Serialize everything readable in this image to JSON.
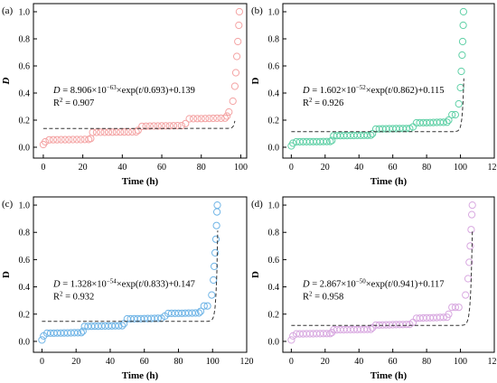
{
  "figure": {
    "panels": [
      {
        "tag": "(a)",
        "color": "#f4a3a3",
        "ylabel": "D",
        "ylabel_italic": true,
        "xlabel": "Time (h)",
        "eq_lead": "D",
        "eq_lead_italic": true,
        "eq_coef": " = 8.906×10",
        "eq_exp": "−63",
        "eq_mid": "×exp(",
        "eq_var": "t",
        "eq_tail": "/0.693)+0.139",
        "r2_text": "R",
        "r2_sup": "2",
        "r2_value": " = 0.907"
      },
      {
        "tag": "(b)",
        "color": "#5fd0a6",
        "ylabel": "D",
        "ylabel_italic": false,
        "xlabel": "Time (h)",
        "eq_lead": "D",
        "eq_lead_italic": true,
        "eq_coef": " = 1.602×10",
        "eq_exp": "−52",
        "eq_mid": "×exp(",
        "eq_var": "t",
        "eq_tail": "/0.862)+0.115",
        "r2_text": "R",
        "r2_sup": "2",
        "r2_value": " = 0.926"
      },
      {
        "tag": "(c)",
        "color": "#6fb4e6",
        "ylabel": "D",
        "ylabel_italic": false,
        "xlabel": "Time (h)",
        "eq_lead": "D",
        "eq_lead_italic": true,
        "eq_coef": " = 1.328×10",
        "eq_exp": "−54",
        "eq_mid": "×exp(",
        "eq_var": "t",
        "eq_tail": "/0.833)+0.147",
        "r2_text": "R",
        "r2_sup": "2",
        "r2_value": " = 0.932"
      },
      {
        "tag": "(d)",
        "color": "#d8a8e0",
        "ylabel": "D",
        "ylabel_italic": false,
        "xlabel": "Time (h)",
        "eq_lead": "D",
        "eq_lead_italic": true,
        "eq_coef": " = 2.867×10",
        "eq_exp": "−50",
        "eq_mid": "×exp(",
        "eq_var": "t",
        "eq_tail": "/0.941)+0.117",
        "r2_text": "R",
        "r2_sup": "2",
        "r2_value": " = 0.958"
      }
    ]
  },
  "chart_data": [
    {
      "type": "scatter",
      "x_ticks": [
        0,
        20,
        40,
        60,
        80,
        100
      ],
      "y_ticks": [
        0.0,
        0.2,
        0.4,
        0.6,
        0.8,
        1.0
      ],
      "xlim": [
        -5,
        103
      ],
      "ylim": [
        -0.08,
        1.06
      ],
      "fit": {
        "a": 8.906e-63,
        "tau": 0.693,
        "c": 0.139
      },
      "fit_x_range": [
        0,
        97
      ],
      "steps": [
        [
          0,
          0.02
        ],
        [
          1,
          0.04
        ],
        [
          3,
          0.055
        ],
        [
          24,
          0.065
        ],
        [
          25,
          0.11
        ],
        [
          48,
          0.125
        ],
        [
          50,
          0.155
        ],
        [
          72,
          0.175
        ],
        [
          74,
          0.21
        ],
        [
          93,
          0.23
        ],
        [
          94,
          0.26
        ]
      ],
      "rise": [
        [
          96,
          0.34
        ],
        [
          97,
          0.45
        ],
        [
          97.5,
          0.55
        ],
        [
          98,
          0.67
        ],
        [
          98.5,
          0.78
        ],
        [
          99,
          0.9
        ],
        [
          99.3,
          1.0
        ]
      ],
      "end_x": 95
    },
    {
      "type": "scatter",
      "x_ticks": [
        0,
        20,
        40,
        60,
        80,
        100,
        120
      ],
      "y_ticks": [
        0.0,
        0.2,
        0.4,
        0.6,
        0.8,
        1.0
      ],
      "xlim": [
        -5,
        120
      ],
      "ylim": [
        -0.08,
        1.06
      ],
      "fit": {
        "a": 1.602e-52,
        "tau": 0.862,
        "c": 0.115
      },
      "fit_x_range": [
        0,
        102
      ],
      "steps": [
        [
          0,
          0.01
        ],
        [
          1,
          0.03
        ],
        [
          3,
          0.04
        ],
        [
          24,
          0.05
        ],
        [
          25,
          0.085
        ],
        [
          48,
          0.1
        ],
        [
          50,
          0.135
        ],
        [
          72,
          0.15
        ],
        [
          74,
          0.18
        ],
        [
          93,
          0.2
        ],
        [
          95,
          0.24
        ]
      ],
      "rise": [
        [
          99,
          0.32
        ],
        [
          100,
          0.44
        ],
        [
          100.5,
          0.56
        ],
        [
          101,
          0.68
        ],
        [
          101.3,
          0.78
        ],
        [
          101.6,
          0.9
        ],
        [
          101.8,
          1.0
        ]
      ],
      "end_x": 98
    },
    {
      "type": "scatter",
      "x_ticks": [
        0,
        20,
        40,
        60,
        80,
        100,
        120
      ],
      "y_ticks": [
        0.0,
        0.2,
        0.4,
        0.6,
        0.8,
        1.0
      ],
      "xlim": [
        -5,
        120
      ],
      "ylim": [
        -0.08,
        1.06
      ],
      "fit": {
        "a": 1.328e-54,
        "tau": 0.833,
        "c": 0.147
      },
      "fit_x_range": [
        0,
        103
      ],
      "steps": [
        [
          0,
          0.01
        ],
        [
          1,
          0.04
        ],
        [
          3,
          0.06
        ],
        [
          24,
          0.075
        ],
        [
          25,
          0.11
        ],
        [
          48,
          0.13
        ],
        [
          50,
          0.165
        ],
        [
          72,
          0.185
        ],
        [
          74,
          0.205
        ],
        [
          93,
          0.22
        ],
        [
          95,
          0.26
        ]
      ],
      "rise": [
        [
          99.5,
          0.34
        ],
        [
          100.5,
          0.45
        ],
        [
          101,
          0.55
        ],
        [
          101.5,
          0.65
        ],
        [
          102,
          0.75
        ],
        [
          102.3,
          0.85
        ],
        [
          102.6,
          0.95
        ],
        [
          102.8,
          1.0
        ]
      ],
      "end_x": 98
    },
    {
      "type": "scatter",
      "x_ticks": [
        0,
        20,
        40,
        60,
        80,
        100,
        120
      ],
      "y_ticks": [
        0.0,
        0.2,
        0.4,
        0.6,
        0.8,
        1.0
      ],
      "xlim": [
        -5,
        120
      ],
      "ylim": [
        -0.08,
        1.06
      ],
      "fit": {
        "a": 2.867e-50,
        "tau": 0.941,
        "c": 0.117
      },
      "fit_x_range": [
        0,
        107
      ],
      "steps": [
        [
          0,
          0.01
        ],
        [
          1,
          0.04
        ],
        [
          3,
          0.055
        ],
        [
          24,
          0.065
        ],
        [
          25,
          0.085
        ],
        [
          48,
          0.1
        ],
        [
          50,
          0.12
        ],
        [
          72,
          0.14
        ],
        [
          74,
          0.17
        ],
        [
          93,
          0.2
        ],
        [
          95,
          0.25
        ]
      ],
      "rise": [
        [
          103,
          0.34
        ],
        [
          104.5,
          0.46
        ],
        [
          105.2,
          0.58
        ],
        [
          105.8,
          0.7
        ],
        [
          106.3,
          0.82
        ],
        [
          106.7,
          0.93
        ],
        [
          107,
          1.0
        ]
      ],
      "end_x": 101
    }
  ]
}
